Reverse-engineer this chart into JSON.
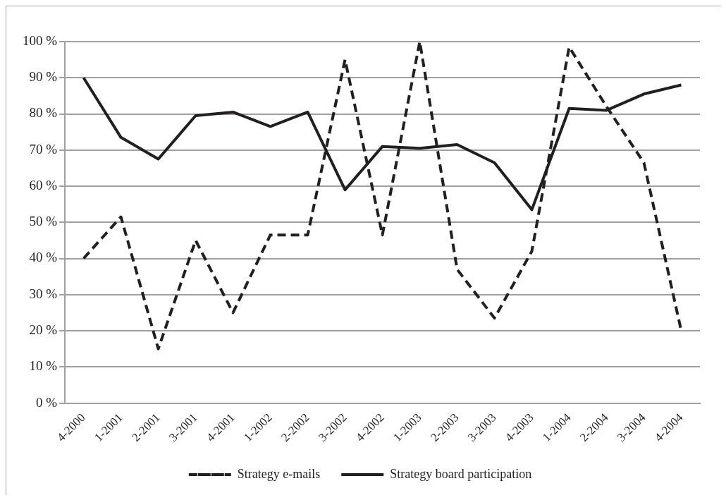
{
  "chart_data": {
    "type": "line",
    "categories": [
      "4-2000",
      "1-2001",
      "2-2001",
      "3-2001",
      "4-2001",
      "1-2002",
      "2-2002",
      "3-2002",
      "4-2002",
      "1-2003",
      "2-2003",
      "3-2003",
      "4-2003",
      "1-2004",
      "2-2004",
      "3-2004",
      "4-2004"
    ],
    "series": [
      {
        "name": "Strategy e-mails",
        "color": "#231f20",
        "line_style": "dashed",
        "values": [
          40,
          51.5,
          15,
          45,
          25,
          46.5,
          46.5,
          95,
          46.5,
          100,
          37,
          23.5,
          42,
          98.5,
          82,
          66.5,
          20
        ]
      },
      {
        "name": "Strategy board participation",
        "color": "#231f20",
        "line_style": "solid",
        "values": [
          90,
          73.5,
          67.5,
          79.5,
          80.5,
          76.5,
          80.5,
          59,
          71,
          70.5,
          71.5,
          66.5,
          53.5,
          81.5,
          81,
          85.5,
          88
        ]
      }
    ],
    "ylim": [
      0,
      100
    ],
    "yticks": [
      {
        "value": 0,
        "label": "0 %"
      },
      {
        "value": 10,
        "label": "10 %"
      },
      {
        "value": 20,
        "label": "20 %"
      },
      {
        "value": 30,
        "label": "30 %"
      },
      {
        "value": 40,
        "label": "40 %"
      },
      {
        "value": 50,
        "label": "50 %"
      },
      {
        "value": 60,
        "label": "60 %"
      },
      {
        "value": 70,
        "label": "70 %"
      },
      {
        "value": 80,
        "label": "80 %"
      },
      {
        "value": 90,
        "label": "90 %"
      },
      {
        "value": 100,
        "label": "100 %"
      }
    ],
    "grid": "y",
    "legend": "bottom",
    "marker": "none"
  }
}
